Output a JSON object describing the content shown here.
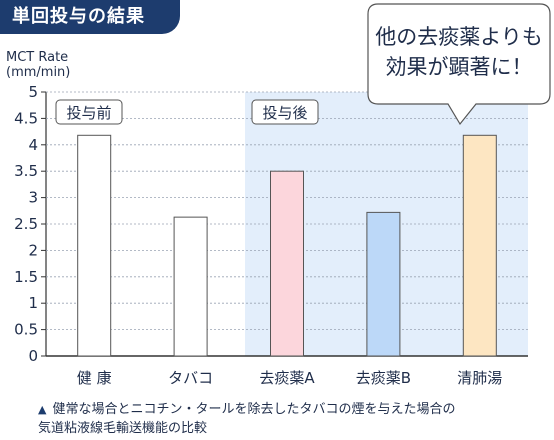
{
  "header": {
    "title": "単回投与の結果"
  },
  "chart_data": {
    "type": "bar",
    "ylabel": "MCT Rate\n(mm/min)",
    "ylim": [
      0,
      5
    ],
    "yticks": [
      "0",
      "0.5",
      "1",
      "1.5",
      "2",
      "2.5",
      "3",
      "3.5",
      "4",
      "4.5",
      "5"
    ],
    "categories": [
      "健 康",
      "タバコ",
      "去痰薬A",
      "去痰薬B",
      "清肺湯"
    ],
    "values": [
      4.18,
      2.63,
      3.5,
      2.72,
      4.18
    ],
    "bar_colors": [
      "#ffffff",
      "#ffffff",
      "#fcd6dc",
      "#bcd8f8",
      "#fde6c2"
    ],
    "groups": [
      {
        "label": "投与前"
      },
      {
        "label": "投与後"
      }
    ],
    "shade_color": "#e3eefb",
    "annotation": "他の去痰薬よりも\n効果が顕著に！"
  },
  "footnote": {
    "marker": "▲",
    "text": "健常な場合とニコチン・タールを除去したタバコの煙を与えた場合の\n気道粘液線毛輸送機能の比較"
  }
}
